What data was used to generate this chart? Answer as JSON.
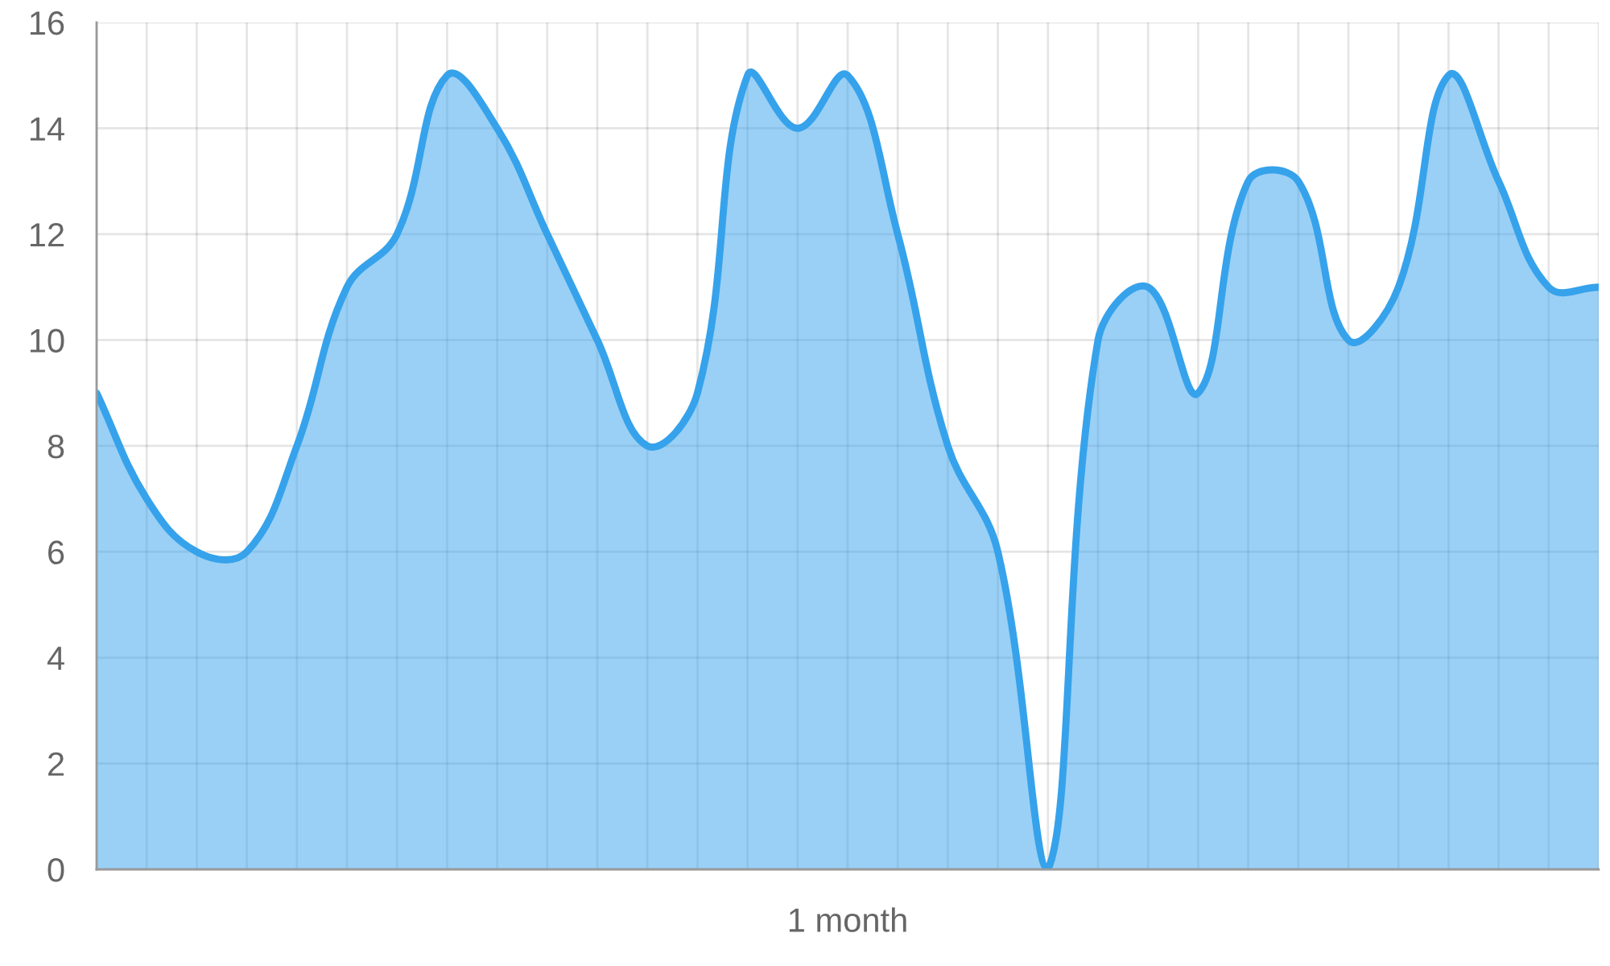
{
  "chart_data": {
    "type": "area",
    "categories": [
      null,
      null,
      null,
      null,
      null,
      null,
      null,
      null,
      null,
      null,
      null,
      null,
      null,
      null,
      null,
      "1 month",
      null,
      null,
      null,
      null,
      null,
      null,
      null,
      null,
      null,
      null,
      null,
      null,
      null,
      null,
      null
    ],
    "series": [
      {
        "color": "#36a2eb",
        "values": [
          9,
          7,
          6,
          6,
          8,
          11,
          12,
          15,
          14,
          12,
          10,
          8,
          9,
          15,
          14,
          15,
          12,
          8,
          6,
          0,
          10,
          11,
          9,
          13,
          13,
          10,
          11,
          15,
          13,
          11,
          11
        ]
      }
    ],
    "ylim": [
      0,
      16
    ],
    "yticks": [
      0,
      2,
      4,
      6,
      8,
      10,
      12,
      14,
      16
    ],
    "grid": true
  }
}
